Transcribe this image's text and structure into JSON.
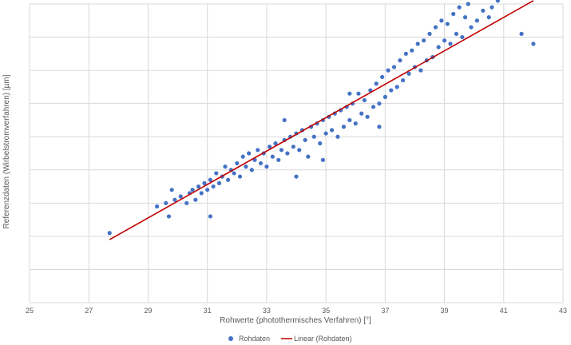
{
  "chart_data": {
    "type": "scatter",
    "xlabel": "Rohwerte (photothermisches Verfahren) [°]",
    "ylabel": "Referenzdaten (Wirbelstromverfahren) [µm]",
    "xlim": [
      25,
      43
    ],
    "x_ticks": [
      25,
      27,
      29,
      31,
      33,
      35,
      37,
      39,
      41,
      43
    ],
    "y_gridlines": 9,
    "grid": "both",
    "legend_position": "bottom",
    "legend": [
      "Rohdaten",
      "Linear (Rohdaten)"
    ],
    "colors": {
      "points": "#4472C4",
      "trend": "#C00000",
      "grid": "#D9D9D9",
      "text": "#595959"
    },
    "series": [
      {
        "name": "Rohdaten",
        "kind": "points",
        "points": [
          [
            27.7,
            2.1
          ],
          [
            29.3,
            2.9
          ],
          [
            29.6,
            3.0
          ],
          [
            29.7,
            2.6
          ],
          [
            29.8,
            3.4
          ],
          [
            29.9,
            3.1
          ],
          [
            30.1,
            3.2
          ],
          [
            30.3,
            3.0
          ],
          [
            30.4,
            3.3
          ],
          [
            30.5,
            3.4
          ],
          [
            30.6,
            3.1
          ],
          [
            30.7,
            3.5
          ],
          [
            30.8,
            3.3
          ],
          [
            30.9,
            3.6
          ],
          [
            31.0,
            3.4
          ],
          [
            31.1,
            2.6
          ],
          [
            31.1,
            3.7
          ],
          [
            31.2,
            3.5
          ],
          [
            31.3,
            3.9
          ],
          [
            31.4,
            3.6
          ],
          [
            31.5,
            3.8
          ],
          [
            31.6,
            4.1
          ],
          [
            31.7,
            3.7
          ],
          [
            31.8,
            4.0
          ],
          [
            31.9,
            3.9
          ],
          [
            32.0,
            4.2
          ],
          [
            32.1,
            3.8
          ],
          [
            32.2,
            4.4
          ],
          [
            32.3,
            4.1
          ],
          [
            32.4,
            4.5
          ],
          [
            32.5,
            4.0
          ],
          [
            32.6,
            4.3
          ],
          [
            32.7,
            4.6
          ],
          [
            32.8,
            4.2
          ],
          [
            32.9,
            4.5
          ],
          [
            33.0,
            4.1
          ],
          [
            33.1,
            4.7
          ],
          [
            33.2,
            4.4
          ],
          [
            33.3,
            4.8
          ],
          [
            33.4,
            4.3
          ],
          [
            33.5,
            4.6
          ],
          [
            33.6,
            4.9
          ],
          [
            33.7,
            4.5
          ],
          [
            33.8,
            5.0
          ],
          [
            33.9,
            4.7
          ],
          [
            34.0,
            3.8
          ],
          [
            34.0,
            5.1
          ],
          [
            34.1,
            4.6
          ],
          [
            34.2,
            5.2
          ],
          [
            34.3,
            4.9
          ],
          [
            34.4,
            4.4
          ],
          [
            34.5,
            5.3
          ],
          [
            34.6,
            5.0
          ],
          [
            34.7,
            5.4
          ],
          [
            34.8,
            4.8
          ],
          [
            34.9,
            5.5
          ],
          [
            35.0,
            5.1
          ],
          [
            35.1,
            5.6
          ],
          [
            35.2,
            5.2
          ],
          [
            35.3,
            5.7
          ],
          [
            35.4,
            5.0
          ],
          [
            35.5,
            5.8
          ],
          [
            35.6,
            5.3
          ],
          [
            35.7,
            5.9
          ],
          [
            35.8,
            5.5
          ],
          [
            35.9,
            6.0
          ],
          [
            36.0,
            5.4
          ],
          [
            36.1,
            6.3
          ],
          [
            36.2,
            5.7
          ],
          [
            36.3,
            6.1
          ],
          [
            36.4,
            5.6
          ],
          [
            36.5,
            6.4
          ],
          [
            36.6,
            5.9
          ],
          [
            36.7,
            6.6
          ],
          [
            36.8,
            6.0
          ],
          [
            36.9,
            6.8
          ],
          [
            37.0,
            6.2
          ],
          [
            37.1,
            7.0
          ],
          [
            37.2,
            6.4
          ],
          [
            37.3,
            7.1
          ],
          [
            37.4,
            6.5
          ],
          [
            37.5,
            7.3
          ],
          [
            37.6,
            6.7
          ],
          [
            37.7,
            7.5
          ],
          [
            37.8,
            6.9
          ],
          [
            37.9,
            7.6
          ],
          [
            38.0,
            7.1
          ],
          [
            38.1,
            7.8
          ],
          [
            38.2,
            7.0
          ],
          [
            38.3,
            7.9
          ],
          [
            38.4,
            7.3
          ],
          [
            38.5,
            8.1
          ],
          [
            38.6,
            7.4
          ],
          [
            38.7,
            8.3
          ],
          [
            38.8,
            7.7
          ],
          [
            38.9,
            8.5
          ],
          [
            39.0,
            7.9
          ],
          [
            39.1,
            8.4
          ],
          [
            39.2,
            7.8
          ],
          [
            39.3,
            8.7
          ],
          [
            39.4,
            8.1
          ],
          [
            39.5,
            8.9
          ],
          [
            39.6,
            8.0
          ],
          [
            39.7,
            8.6
          ],
          [
            39.8,
            9.0
          ],
          [
            39.9,
            8.3
          ],
          [
            40.0,
            9.2
          ],
          [
            40.1,
            8.5
          ],
          [
            40.2,
            9.4
          ],
          [
            40.3,
            8.8
          ],
          [
            40.4,
            9.3
          ],
          [
            40.5,
            8.6
          ],
          [
            40.6,
            8.9
          ],
          [
            40.8,
            9.1
          ],
          [
            41.6,
            8.1
          ],
          [
            42.0,
            7.8
          ],
          [
            33.6,
            5.5
          ],
          [
            34.9,
            4.3
          ],
          [
            35.8,
            6.3
          ],
          [
            36.8,
            5.3
          ]
        ]
      },
      {
        "name": "Linear (Rohdaten)",
        "kind": "line",
        "points": [
          [
            27.7,
            1.9
          ],
          [
            42.0,
            9.1
          ]
        ]
      }
    ]
  }
}
